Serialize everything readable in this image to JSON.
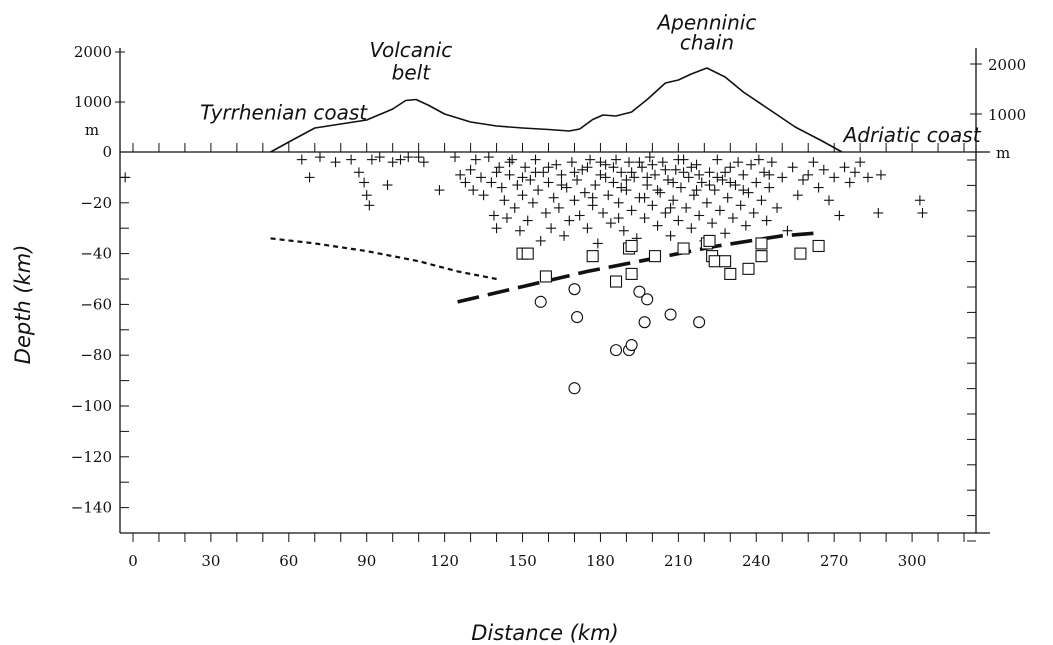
{
  "chart_data": {
    "type": "scatter",
    "xlabel": "Distance (km)",
    "ylabel": "Depth (km)",
    "xlim": [
      -5,
      330
    ],
    "ylim": [
      -150,
      0
    ],
    "elevation_lim": [
      0,
      2000
    ],
    "x_ticks": [
      0,
      30,
      60,
      90,
      120,
      150,
      180,
      210,
      240,
      270,
      300
    ],
    "y_ticks": [
      0,
      -20,
      -40,
      -60,
      -80,
      -100,
      -120,
      -140
    ],
    "elevation_ticks_left": [
      {
        "value": 2000,
        "label": "2000"
      },
      {
        "value": 1000,
        "label": "1000"
      }
    ],
    "elevation_ticks_right": [
      {
        "value": 2000,
        "label": "2000"
      },
      {
        "value": 1000,
        "label": "1000"
      }
    ],
    "elevation_unit": "m",
    "annotations": [
      {
        "text": "Tyrrhenian coast",
        "x": 58,
        "elev": 650
      },
      {
        "text": "Volcanic",
        "x": 107,
        "elev": 1900
      },
      {
        "text": "belt",
        "x": 107,
        "elev": 1450
      },
      {
        "text": "Apenninic",
        "x": 221,
        "elev": 2450
      },
      {
        "text": "chain",
        "x": 221,
        "elev": 2050
      },
      {
        "text": "Adriatic coast",
        "x": 300,
        "elev": 200
      }
    ],
    "topography": [
      [
        53,
        0
      ],
      [
        60,
        200
      ],
      [
        70,
        480
      ],
      [
        80,
        560
      ],
      [
        90,
        640
      ],
      [
        100,
        860
      ],
      [
        105,
        1030
      ],
      [
        109,
        1050
      ],
      [
        114,
        930
      ],
      [
        120,
        760
      ],
      [
        130,
        600
      ],
      [
        140,
        520
      ],
      [
        150,
        480
      ],
      [
        160,
        450
      ],
      [
        168,
        420
      ],
      [
        172,
        460
      ],
      [
        177,
        650
      ],
      [
        181,
        740
      ],
      [
        186,
        720
      ],
      [
        192,
        800
      ],
      [
        198,
        1050
      ],
      [
        205,
        1380
      ],
      [
        210,
        1440
      ],
      [
        215,
        1560
      ],
      [
        221,
        1680
      ],
      [
        228,
        1500
      ],
      [
        235,
        1200
      ],
      [
        245,
        850
      ],
      [
        255,
        500
      ],
      [
        265,
        230
      ],
      [
        273,
        0
      ]
    ],
    "series": [
      {
        "name": "",
        "marker": "plus",
        "points": [
          [
            -3,
            -10
          ],
          [
            65,
            -3
          ],
          [
            68,
            -10
          ],
          [
            72,
            -2
          ],
          [
            78,
            -4
          ],
          [
            84,
            -3
          ],
          [
            87,
            -8
          ],
          [
            89,
            -12
          ],
          [
            90,
            -17
          ],
          [
            91,
            -21
          ],
          [
            92,
            -3
          ],
          [
            95,
            -2
          ],
          [
            98,
            -13
          ],
          [
            100,
            -4
          ],
          [
            103,
            -3
          ],
          [
            106,
            -2
          ],
          [
            110,
            -2
          ],
          [
            112,
            -4
          ],
          [
            118,
            -15
          ],
          [
            124,
            -2
          ],
          [
            126,
            -9
          ],
          [
            128,
            -12
          ],
          [
            130,
            -7
          ],
          [
            131,
            -15
          ],
          [
            132,
            -3
          ],
          [
            134,
            -10
          ],
          [
            135,
            -17
          ],
          [
            137,
            -2
          ],
          [
            138,
            -12
          ],
          [
            139,
            -25
          ],
          [
            140,
            -30
          ],
          [
            141,
            -6
          ],
          [
            142,
            -14
          ],
          [
            143,
            -19
          ],
          [
            144,
            -26
          ],
          [
            145,
            -9
          ],
          [
            146,
            -3
          ],
          [
            147,
            -22
          ],
          [
            148,
            -13
          ],
          [
            149,
            -31
          ],
          [
            150,
            -17
          ],
          [
            151,
            -6
          ],
          [
            152,
            -27
          ],
          [
            153,
            -11
          ],
          [
            154,
            -20
          ],
          [
            155,
            -3
          ],
          [
            156,
            -15
          ],
          [
            157,
            -35
          ],
          [
            158,
            -8
          ],
          [
            159,
            -24
          ],
          [
            160,
            -12
          ],
          [
            161,
            -30
          ],
          [
            162,
            -18
          ],
          [
            163,
            -5
          ],
          [
            164,
            -22
          ],
          [
            165,
            -9
          ],
          [
            166,
            -33
          ],
          [
            167,
            -14
          ],
          [
            168,
            -27
          ],
          [
            169,
            -4
          ],
          [
            170,
            -19
          ],
          [
            171,
            -11
          ],
          [
            172,
            -25
          ],
          [
            173,
            -7
          ],
          [
            174,
            -16
          ],
          [
            175,
            -30
          ],
          [
            176,
            -3
          ],
          [
            177,
            -21
          ],
          [
            178,
            -13
          ],
          [
            179,
            -36
          ],
          [
            180,
            -9
          ],
          [
            181,
            -24
          ],
          [
            182,
            -5
          ],
          [
            183,
            -17
          ],
          [
            184,
            -28
          ],
          [
            185,
            -12
          ],
          [
            186,
            -3
          ],
          [
            187,
            -20
          ],
          [
            188,
            -8
          ],
          [
            189,
            -31
          ],
          [
            190,
            -15
          ],
          [
            191,
            -4
          ],
          [
            192,
            -23
          ],
          [
            193,
            -10
          ],
          [
            194,
            -34
          ],
          [
            195,
            -18
          ],
          [
            196,
            -6
          ],
          [
            197,
            -26
          ],
          [
            198,
            -13
          ],
          [
            199,
            -2
          ],
          [
            200,
            -21
          ],
          [
            201,
            -9
          ],
          [
            202,
            -29
          ],
          [
            203,
            -16
          ],
          [
            204,
            -4
          ],
          [
            205,
            -24
          ],
          [
            206,
            -11
          ],
          [
            207,
            -33
          ],
          [
            208,
            -19
          ],
          [
            209,
            -7
          ],
          [
            210,
            -27
          ],
          [
            211,
            -14
          ],
          [
            212,
            -3
          ],
          [
            213,
            -22
          ],
          [
            214,
            -10
          ],
          [
            215,
            -30
          ],
          [
            216,
            -17
          ],
          [
            217,
            -5
          ],
          [
            218,
            -25
          ],
          [
            219,
            -12
          ],
          [
            220,
            -35
          ],
          [
            221,
            -20
          ],
          [
            222,
            -8
          ],
          [
            223,
            -28
          ],
          [
            224,
            -15
          ],
          [
            225,
            -3
          ],
          [
            226,
            -23
          ],
          [
            227,
            -11
          ],
          [
            228,
            -32
          ],
          [
            229,
            -18
          ],
          [
            230,
            -6
          ],
          [
            231,
            -26
          ],
          [
            232,
            -13
          ],
          [
            233,
            -4
          ],
          [
            234,
            -21
          ],
          [
            235,
            -9
          ],
          [
            236,
            -29
          ],
          [
            237,
            -16
          ],
          [
            238,
            -5
          ],
          [
            239,
            -24
          ],
          [
            240,
            -12
          ],
          [
            241,
            -3
          ],
          [
            242,
            -19
          ],
          [
            243,
            -8
          ],
          [
            244,
            -27
          ],
          [
            245,
            -14
          ],
          [
            246,
            -4
          ],
          [
            248,
            -22
          ],
          [
            250,
            -10
          ],
          [
            252,
            -31
          ],
          [
            254,
            -6
          ],
          [
            256,
            -17
          ],
          [
            258,
            -11
          ],
          [
            260,
            -9
          ],
          [
            262,
            -4
          ],
          [
            264,
            -14
          ],
          [
            266,
            -7
          ],
          [
            268,
            -19
          ],
          [
            270,
            -10
          ],
          [
            272,
            -25
          ],
          [
            274,
            -6
          ],
          [
            276,
            -12
          ],
          [
            278,
            -8
          ],
          [
            280,
            -4
          ],
          [
            283,
            -10
          ],
          [
            287,
            -24
          ],
          [
            288,
            -9
          ],
          [
            303,
            -19
          ],
          [
            304,
            -24
          ],
          [
            175,
            -6
          ],
          [
            185,
            -6
          ],
          [
            195,
            -4
          ],
          [
            205,
            -7
          ],
          [
            215,
            -6
          ],
          [
            188,
            -14
          ],
          [
            198,
            -10
          ],
          [
            208,
            -12
          ],
          [
            218,
            -9
          ],
          [
            228,
            -8
          ],
          [
            182,
            -10
          ],
          [
            192,
            -8
          ],
          [
            202,
            -15
          ],
          [
            212,
            -8
          ],
          [
            222,
            -13
          ],
          [
            170,
            -8
          ],
          [
            160,
            -6
          ],
          [
            150,
            -10
          ],
          [
            140,
            -8
          ],
          [
            245,
            -9
          ],
          [
            235,
            -15
          ],
          [
            225,
            -10
          ],
          [
            200,
            -5
          ],
          [
            210,
            -3
          ],
          [
            190,
            -11
          ],
          [
            180,
            -4
          ],
          [
            230,
            -12
          ],
          [
            165,
            -13
          ],
          [
            155,
            -8
          ],
          [
            145,
            -4
          ],
          [
            197,
            -18
          ],
          [
            207,
            -22
          ],
          [
            217,
            -15
          ],
          [
            187,
            -26
          ],
          [
            177,
            -18
          ]
        ]
      },
      {
        "name": "",
        "marker": "square",
        "points": [
          [
            150,
            -40
          ],
          [
            152,
            -40
          ],
          [
            159,
            -49
          ],
          [
            177,
            -41
          ],
          [
            186,
            -51
          ],
          [
            191,
            -38
          ],
          [
            192,
            -37
          ],
          [
            192,
            -48
          ],
          [
            201,
            -41
          ],
          [
            212,
            -38
          ],
          [
            221,
            -36
          ],
          [
            222,
            -35
          ],
          [
            223,
            -41
          ],
          [
            224,
            -43
          ],
          [
            228,
            -43
          ],
          [
            230,
            -48
          ],
          [
            237,
            -46
          ],
          [
            242,
            -36
          ],
          [
            242,
            -41
          ],
          [
            257,
            -40
          ],
          [
            264,
            -37
          ]
        ]
      },
      {
        "name": "",
        "marker": "circle",
        "points": [
          [
            157,
            -59
          ],
          [
            170,
            -54
          ],
          [
            171,
            -65
          ],
          [
            170,
            -93
          ],
          [
            186,
            -78
          ],
          [
            191,
            -78
          ],
          [
            192,
            -76
          ],
          [
            195,
            -55
          ],
          [
            198,
            -58
          ],
          [
            197,
            -67
          ],
          [
            207,
            -64
          ],
          [
            218,
            -67
          ]
        ]
      }
    ],
    "lines": [
      {
        "style": "dotted",
        "points": [
          [
            53,
            -34
          ],
          [
            70,
            -36
          ],
          [
            90,
            -39
          ],
          [
            110,
            -43
          ],
          [
            125,
            -47
          ],
          [
            140,
            -50
          ]
        ]
      },
      {
        "style": "dashed",
        "points": [
          [
            125,
            -59
          ],
          [
            150,
            -53
          ],
          [
            175,
            -47
          ],
          [
            200,
            -42
          ],
          [
            225,
            -37
          ],
          [
            250,
            -33
          ],
          [
            262,
            -32
          ]
        ]
      }
    ]
  }
}
